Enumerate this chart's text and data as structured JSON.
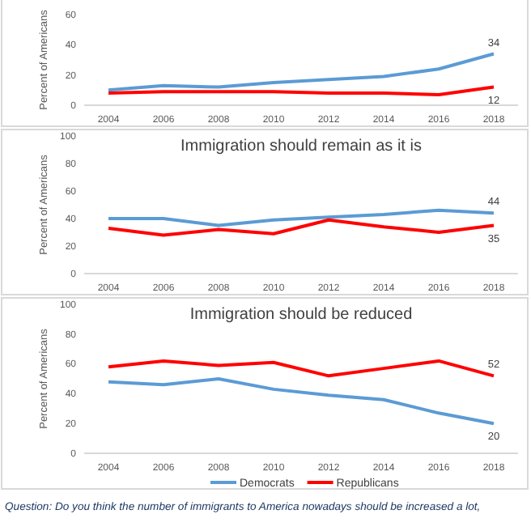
{
  "chart_data": [
    {
      "type": "line",
      "ylabel": "Percent of Americans",
      "categories": [
        "2004",
        "2006",
        "2008",
        "2010",
        "2012",
        "2014",
        "2016",
        "2018"
      ],
      "ylim": [
        0,
        60
      ],
      "yticks": [
        0,
        20,
        40,
        60
      ],
      "grid": false,
      "legend": false,
      "series": [
        {
          "color": "#5b9bd5",
          "values": [
            10,
            13,
            12,
            15,
            17,
            19,
            24,
            34
          ],
          "value_labels": [
            null,
            null,
            null,
            null,
            null,
            null,
            null,
            "34"
          ]
        },
        {
          "color": "#ff0000",
          "values": [
            8,
            9,
            9,
            9,
            8,
            8,
            7,
            12
          ],
          "value_labels": [
            null,
            null,
            null,
            null,
            null,
            null,
            null,
            "12"
          ]
        }
      ]
    },
    {
      "type": "line",
      "title": "Immigration should remain as it is",
      "ylabel": "Percent of Americans",
      "categories": [
        "2004",
        "2006",
        "2008",
        "2010",
        "2012",
        "2014",
        "2016",
        "2018"
      ],
      "ylim": [
        0,
        100
      ],
      "yticks": [
        0,
        20,
        40,
        60,
        80,
        100
      ],
      "grid": false,
      "legend": false,
      "series": [
        {
          "color": "#5b9bd5",
          "values": [
            40,
            40,
            35,
            39,
            41,
            43,
            46,
            44
          ],
          "value_labels": [
            null,
            null,
            null,
            null,
            null,
            null,
            null,
            "44"
          ]
        },
        {
          "color": "#ff0000",
          "values": [
            33,
            28,
            32,
            29,
            39,
            34,
            30,
            35
          ],
          "value_labels": [
            null,
            null,
            null,
            null,
            null,
            null,
            null,
            "35"
          ]
        }
      ]
    },
    {
      "type": "line",
      "title": "Immigration should be reduced",
      "ylabel": "Percent of Americans",
      "categories": [
        "2004",
        "2006",
        "2008",
        "2010",
        "2012",
        "2014",
        "2016",
        "2018"
      ],
      "ylim": [
        0,
        100
      ],
      "yticks": [
        0,
        20,
        40,
        60,
        80,
        100
      ],
      "grid": false,
      "legend": "bottom",
      "annotations": [
        "Question: Do you think the number of immigrants to America nowadays should be increased a lot,"
      ],
      "series": [
        {
          "name": "Democrats",
          "color": "#5b9bd5",
          "values": [
            48,
            46,
            50,
            43,
            39,
            36,
            27,
            20
          ],
          "value_labels": [
            null,
            null,
            null,
            null,
            null,
            null,
            null,
            "20"
          ]
        },
        {
          "name": "Republicans",
          "color": "#ff0000",
          "values": [
            58,
            62,
            59,
            61,
            52,
            57,
            62,
            52
          ],
          "value_labels": [
            null,
            null,
            null,
            null,
            null,
            null,
            null,
            "52"
          ]
        }
      ]
    }
  ]
}
